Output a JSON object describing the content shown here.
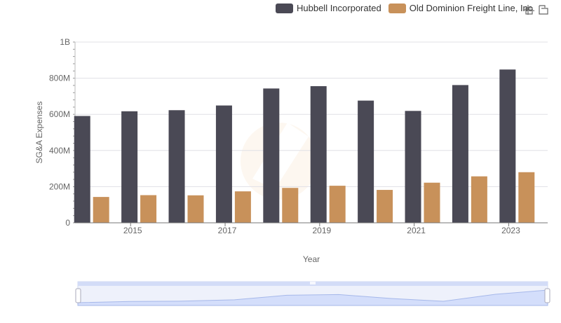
{
  "legend": {
    "series": [
      {
        "name": "Hubbell Incorporated",
        "color": "#4a4955"
      },
      {
        "name": "Old Dominion Freight Line, Inc.",
        "color": "#c8915a"
      }
    ]
  },
  "toolbar": {
    "zoom_icon": "crosshair-zoom-icon",
    "restore_icon": "restore-icon"
  },
  "chart_data": {
    "type": "bar",
    "xlabel": "Year",
    "ylabel": "SG&A Expenses",
    "ylim": [
      0,
      1000000000
    ],
    "y_ticks": [
      "0",
      "200M",
      "400M",
      "600M",
      "800M",
      "1B"
    ],
    "x_tick_labels": [
      "2015",
      "2017",
      "2019",
      "2021",
      "2023"
    ],
    "categories": [
      "2014",
      "2015",
      "2016",
      "2017",
      "2018",
      "2019",
      "2020",
      "2021",
      "2022",
      "2023"
    ],
    "series": [
      {
        "name": "Hubbell Incorporated",
        "color": "#4a4955",
        "values": [
          591000000,
          617000000,
          623000000,
          649000000,
          743000000,
          756000000,
          676000000,
          619000000,
          762000000,
          848000000
        ]
      },
      {
        "name": "Old Dominion Freight Line, Inc.",
        "color": "#c8915a",
        "values": [
          143000000,
          153000000,
          152000000,
          174000000,
          193000000,
          205000000,
          182000000,
          222000000,
          257000000,
          280000000
        ]
      }
    ],
    "grid": true,
    "legend_position": "top-right",
    "has_data_zoom": true
  }
}
